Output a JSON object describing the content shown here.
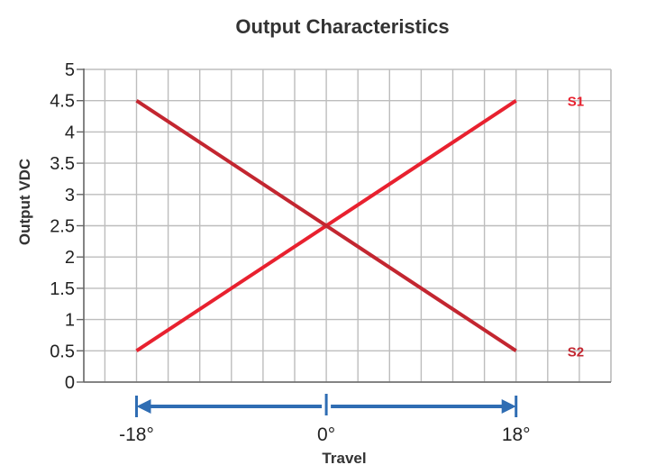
{
  "chart_data": {
    "type": "line",
    "title": "Output Characteristics",
    "xlabel": "Travel",
    "ylabel": "Output VDC",
    "x": [
      -18,
      18
    ],
    "xlim": [
      -23,
      27
    ],
    "ylim": [
      0,
      5
    ],
    "y_ticks": [
      "0",
      "0.5",
      "1",
      "1.5",
      "2",
      "2.5",
      "3",
      "3.5",
      "4",
      "4.5",
      "5"
    ],
    "x_ticks": [
      "-18°",
      "0°",
      "18°"
    ],
    "grid": true,
    "series": [
      {
        "name": "S1",
        "values": [
          0.5,
          4.5
        ],
        "color": "#e8212f"
      },
      {
        "name": "S2",
        "values": [
          4.5,
          0.5
        ],
        "color": "#c32630"
      }
    ],
    "travel_arrow_color": "#2f6db3",
    "grid_color": "#bdbdbd",
    "axis_color": "#666666"
  }
}
